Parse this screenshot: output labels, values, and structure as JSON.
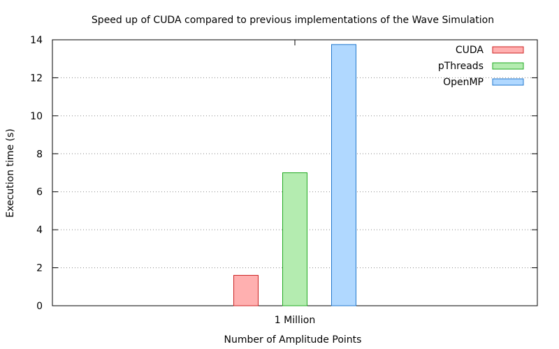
{
  "chart_data": {
    "type": "bar",
    "title": "Speed up of CUDA compared to previous implementations of the Wave Simulation",
    "xlabel": "Number of Amplitude Points",
    "ylabel": "Execution time (s)",
    "categories": [
      "1 Million"
    ],
    "ylim": [
      0,
      14
    ],
    "yticks": [
      0,
      2,
      4,
      6,
      8,
      10,
      12,
      14
    ],
    "grid": true,
    "legend_position": "top-right",
    "series": [
      {
        "name": "CUDA",
        "values": [
          1.6
        ],
        "fill": "#ffb0b0",
        "stroke": "#cc2222"
      },
      {
        "name": "pThreads",
        "values": [
          7.0
        ],
        "fill": "#b4ecb0",
        "stroke": "#22aa22"
      },
      {
        "name": "OpenMP",
        "values": [
          13.75
        ],
        "fill": "#b0d8ff",
        "stroke": "#2277cc"
      }
    ]
  }
}
